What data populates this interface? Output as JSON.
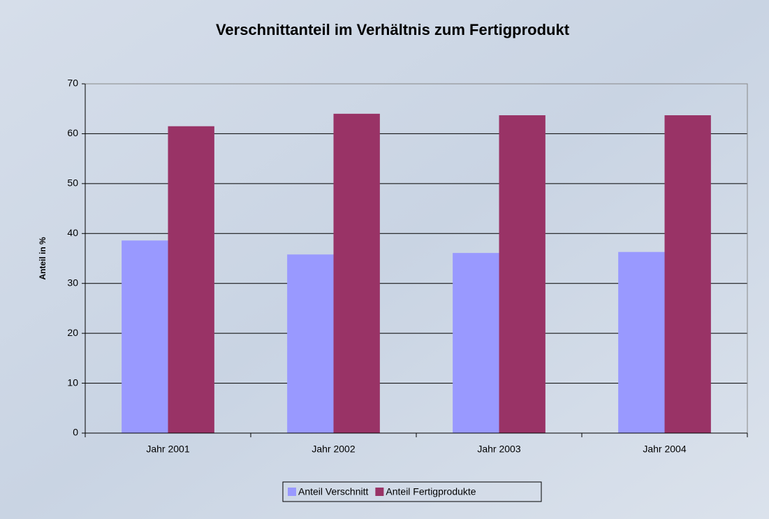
{
  "chart_data": {
    "type": "bar",
    "title": "Verschnittanteil im Verhältnis zum Fertigprodukt",
    "y_label": "Anteil in %",
    "categories": [
      "Jahr 2001",
      "Jahr 2002",
      "Jahr 2003",
      "Jahr 2004"
    ],
    "series": [
      {
        "name": "Anteil Verschnitt",
        "color": "#9999ff",
        "values": [
          38.6,
          35.8,
          36.1,
          36.3
        ]
      },
      {
        "name": "Anteil Fertigprodukte",
        "color": "#993366",
        "values": [
          61.5,
          64.0,
          63.7,
          63.7
        ]
      }
    ],
    "ylim": [
      0,
      70
    ],
    "yticks": [
      0,
      10,
      20,
      30,
      40,
      50,
      60,
      70
    ],
    "grid": true,
    "legend": "bottom"
  }
}
